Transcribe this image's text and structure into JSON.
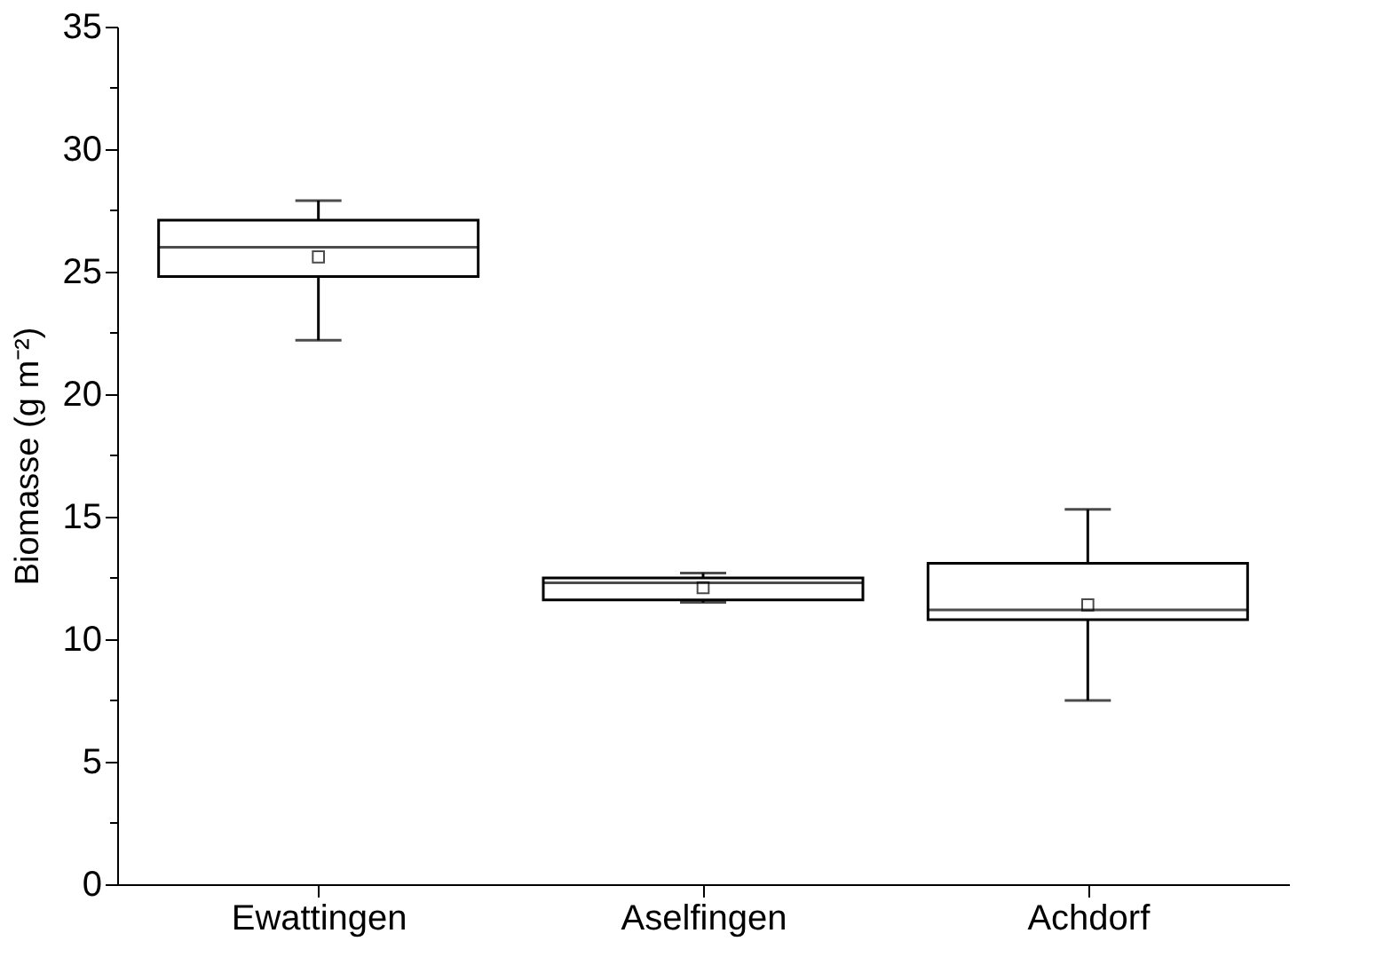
{
  "chart_data": {
    "type": "box",
    "ylabel": "Biomasse (g m⁻²)",
    "categories": [
      "Ewattingen",
      "Aselfingen",
      "Achdorf"
    ],
    "boxes": [
      {
        "low": 22.2,
        "q1": 24.8,
        "median": 26.0,
        "q3": 27.1,
        "high": 27.9,
        "mean": 25.6
      },
      {
        "low": 11.5,
        "q1": 11.6,
        "median": 12.3,
        "q3": 12.5,
        "high": 12.7,
        "mean": 12.1
      },
      {
        "low": 7.5,
        "q1": 10.8,
        "median": 11.2,
        "q3": 13.1,
        "high": 15.3,
        "mean": 11.4
      }
    ],
    "color": "#000000",
    "ylim": [
      0,
      35
    ],
    "yticks": [
      0,
      {
        "value": 2.5,
        "label": null
      },
      5,
      {
        "value": 7.5,
        "label": null
      },
      10,
      {
        "value": 12.5,
        "label": null
      },
      15,
      {
        "value": 17.5,
        "label": null
      },
      20,
      {
        "value": 22.5,
        "label": null
      },
      25,
      {
        "value": 27.5,
        "label": null
      },
      30,
      {
        "value": 32.5,
        "label": null
      },
      35
    ],
    "grid": false
  }
}
